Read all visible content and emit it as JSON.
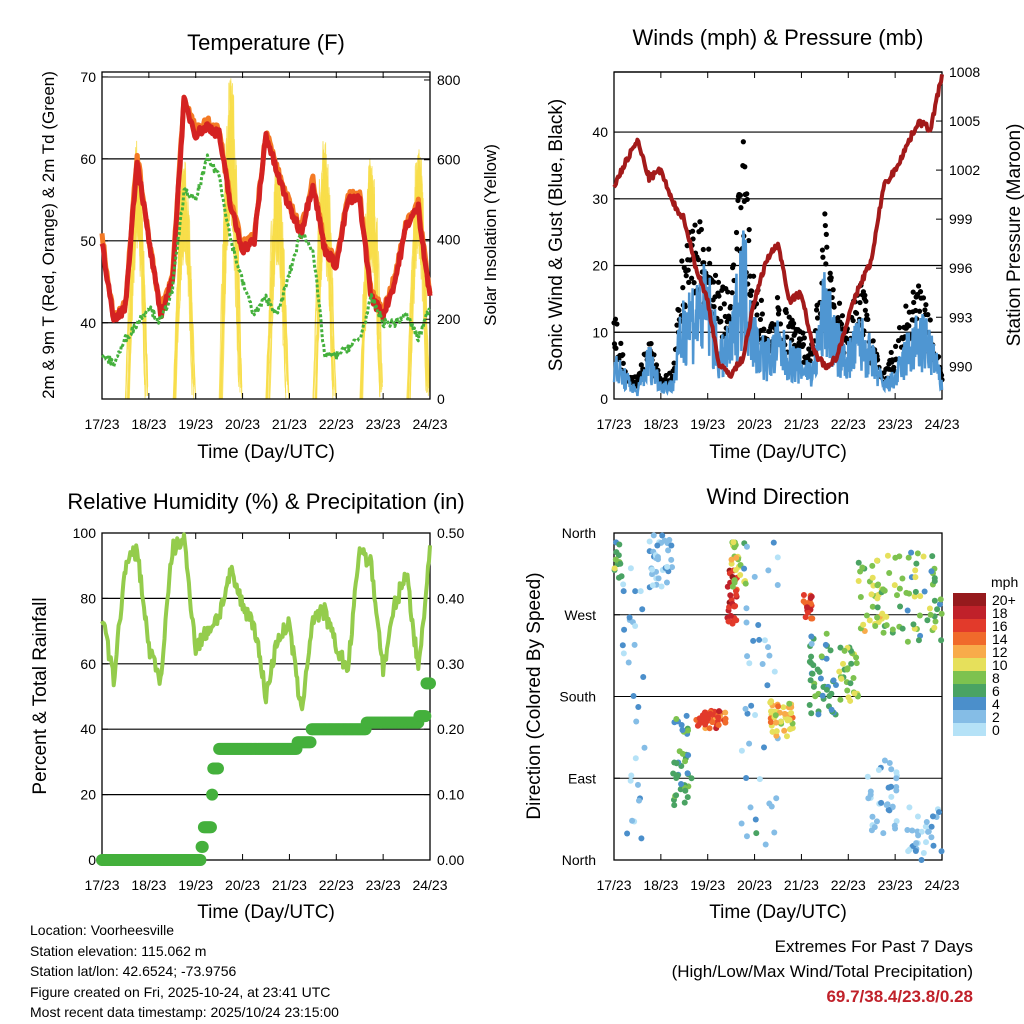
{
  "chart_data": [
    {
      "type": "line",
      "title": "Temperature (F)",
      "xlabel": "Time (Day/UTC)",
      "ylabel": "2m & 9m T (Red, Orange) & 2m Td (Green)",
      "ylabel_right": "Solar Insolation (Yellow)",
      "x_ticks": [
        "17/23",
        "18/23",
        "19/23",
        "20/23",
        "21/23",
        "22/23",
        "23/23",
        "24/23"
      ],
      "y_ticks": [
        "40",
        "50",
        "60",
        "70"
      ],
      "y_right_ticks": [
        "0",
        "200",
        "400",
        "600",
        "800"
      ],
      "ylim": [
        30.7,
        70.6
      ],
      "ylim_right": [
        0,
        820
      ],
      "x_hours_step": 6,
      "series": [
        {
          "name": "2m T",
          "color": "#d42222",
          "values": [
            50,
            40,
            42,
            60,
            50,
            41,
            45,
            67,
            63,
            64,
            63,
            54,
            49,
            50,
            63,
            58,
            54,
            51,
            57,
            49,
            47,
            55,
            55,
            43,
            41,
            45,
            52,
            54,
            43
          ]
        },
        {
          "name": "9m T",
          "color": "#f47a25",
          "values": [
            50.5,
            40.5,
            42.5,
            60.5,
            50.5,
            41.5,
            45.5,
            67.5,
            63.5,
            64.5,
            63.5,
            54.5,
            49.5,
            50.5,
            63.5,
            58.5,
            54.5,
            51.5,
            57.5,
            49.5,
            47.5,
            55.5,
            55.5,
            43.5,
            41.5,
            45.5,
            52.5,
            54.5,
            43.5
          ]
        },
        {
          "name": "2m Td",
          "color": "#44b03c",
          "values": [
            36,
            35,
            38,
            40,
            42,
            40,
            44,
            56,
            55,
            60,
            58,
            50,
            45,
            41,
            43,
            41,
            46,
            51,
            49,
            36,
            36,
            37,
            38,
            43,
            40,
            40,
            41,
            38,
            42
          ]
        }
      ],
      "solar": {
        "name": "Solar Insolation",
        "color": "#f7dd4a",
        "peaks": [
          [
            18,
            650
          ],
          [
            42,
            610
          ],
          [
            66,
            820
          ],
          [
            90,
            600
          ],
          [
            114,
            650
          ],
          [
            138,
            610
          ],
          [
            162,
            640
          ]
        ]
      }
    },
    {
      "type": "line",
      "title": "Winds (mph) & Pressure (mb)",
      "xlabel": "Time (Day/UTC)",
      "ylabel": "Sonic Wind & Gust (Blue, Black)",
      "ylabel_right": "Station Pressure (Maroon)",
      "x_ticks": [
        "17/23",
        "18/23",
        "19/23",
        "20/23",
        "21/23",
        "22/23",
        "23/23",
        "24/23"
      ],
      "y_ticks": [
        "0",
        "10",
        "20",
        "30",
        "40"
      ],
      "y_right_ticks": [
        "990",
        "993",
        "996",
        "999",
        "1002",
        "1005",
        "1008"
      ],
      "ylim": [
        0,
        49
      ],
      "ylim_right": [
        988,
        1008
      ],
      "x_hours_step": 6,
      "series": [
        {
          "name": "Sonic Wind",
          "color": "#4f96d2",
          "values": [
            5,
            3,
            1,
            6,
            2,
            2,
            12,
            13,
            14,
            6,
            8,
            19,
            9,
            6,
            8,
            6,
            5,
            4,
            14,
            8,
            6,
            9,
            6,
            2,
            3,
            7,
            9,
            8,
            2
          ]
        },
        {
          "name": "Gust",
          "color": "#000000",
          "values": [
            14,
            4,
            3,
            9,
            3,
            4,
            24,
            25,
            26,
            16,
            16,
            38,
            17,
            12,
            15,
            12,
            10,
            8,
            27,
            15,
            10,
            19,
            9,
            4,
            8,
            14,
            17,
            12,
            4
          ]
        },
        {
          "name": "Station Pressure",
          "color": "#a31a1a",
          "values": [
            1001,
            1002.5,
            1003.8,
            1001.5,
            1002,
            1000,
            999,
            996,
            994,
            990,
            989.5,
            990.5,
            994,
            996.5,
            997.5,
            994,
            994.5,
            991,
            990,
            990.5,
            993,
            995,
            996.5,
            1001,
            1002,
            1003.5,
            1005,
            1004.5,
            1007.8
          ]
        }
      ]
    },
    {
      "type": "line",
      "title": "Relative Humidity (%) & Precipitation (in)",
      "xlabel": "Time (Day/UTC)",
      "ylabel": "Percent & Total Rainfall",
      "x_ticks": [
        "17/23",
        "18/23",
        "19/23",
        "20/23",
        "21/23",
        "22/23",
        "23/23",
        "24/23"
      ],
      "y_ticks": [
        "0",
        "20",
        "40",
        "60",
        "80",
        "100"
      ],
      "y_right_ticks": [
        "0.00",
        "0.10",
        "0.20",
        "0.30",
        "0.40",
        "0.50"
      ],
      "ylim": [
        0,
        100
      ],
      "ylim_right": [
        0,
        0.5
      ],
      "x_hours_step": 6,
      "series": [
        {
          "name": "Relative Humidity",
          "color": "#94cc4c",
          "values": [
            75,
            55,
            90,
            95,
            65,
            55,
            95,
            98,
            65,
            70,
            75,
            88,
            78,
            72,
            50,
            68,
            72,
            45,
            74,
            76,
            65,
            58,
            96,
            90,
            58,
            78,
            88,
            58,
            95
          ]
        },
        {
          "name": "Total Precipitation",
          "color": "#44b03c",
          "steps": [
            [
              0,
              0
            ],
            [
              50,
              0
            ],
            [
              51,
              0.02
            ],
            [
              52,
              0.05
            ],
            [
              56,
              0.1
            ],
            [
              57,
              0.14
            ],
            [
              60,
              0.17
            ],
            [
              100,
              0.18
            ],
            [
              107,
              0.2
            ],
            [
              135,
              0.21
            ],
            [
              162,
              0.22
            ],
            [
              166,
              0.27
            ],
            [
              168,
              0.27
            ]
          ]
        }
      ]
    },
    {
      "type": "scatter",
      "title": "Wind Direction",
      "xlabel": "Time (Day/UTC)",
      "ylabel": "Direction (Colored By Speed)",
      "x_ticks": [
        "17/23",
        "18/23",
        "19/23",
        "20/23",
        "21/23",
        "22/23",
        "23/23",
        "24/23"
      ],
      "y_ticks": [
        "North",
        "East",
        "South",
        "West",
        "North"
      ],
      "ylim": [
        0,
        360
      ],
      "legend": {
        "title": "mph",
        "labels": [
          "20+",
          "18",
          "16",
          "14",
          "12",
          "10",
          "8",
          "6",
          "4",
          "2",
          "0"
        ],
        "colors": [
          "#961a1d",
          "#c0212a",
          "#e23a2b",
          "#f06a2b",
          "#f8ab4a",
          "#e6e05b",
          "#7dc24f",
          "#4aa363",
          "#4b8fcb",
          "#85bde6",
          "#b5e2f7"
        ]
      },
      "clusters": [
        [
          0,
          4,
          310,
          350,
          7,
          14
        ],
        [
          4,
          16,
          20,
          340,
          2,
          30
        ],
        [
          18,
          30,
          300,
          360,
          2,
          35
        ],
        [
          30,
          40,
          60,
          160,
          6,
          40
        ],
        [
          42,
          58,
          145,
          165,
          15,
          50
        ],
        [
          58,
          63,
          260,
          320,
          17,
          30
        ],
        [
          60,
          68,
          300,
          350,
          9,
          25
        ],
        [
          64,
          84,
          10,
          350,
          3,
          40
        ],
        [
          80,
          92,
          135,
          175,
          11,
          45
        ],
        [
          96,
          102,
          265,
          295,
          16,
          20
        ],
        [
          100,
          115,
          160,
          250,
          5,
          45
        ],
        [
          115,
          125,
          175,
          235,
          8,
          30
        ],
        [
          125,
          140,
          250,
          330,
          9,
          40
        ],
        [
          130,
          145,
          20,
          110,
          2,
          35
        ],
        [
          140,
          168,
          240,
          340,
          7,
          55
        ],
        [
          150,
          168,
          0,
          60,
          2,
          30
        ]
      ]
    }
  ],
  "info": {
    "location": "Location: Voorheesville",
    "elevation": "Station elevation: 115.062 m",
    "latlon": "Station lat/lon: 42.6524; -73.9756",
    "created": "Figure created on Fri, 2025-10-24, at 23:41 UTC",
    "recent": "Most recent data timestamp: 2025/10/24 23:15:00"
  },
  "extremes": {
    "line1": "Extremes For Past 7 Days",
    "line2": "(High/Low/Max Wind/Total Precipitation)",
    "values": "69.7/38.4/23.8/0.28"
  }
}
